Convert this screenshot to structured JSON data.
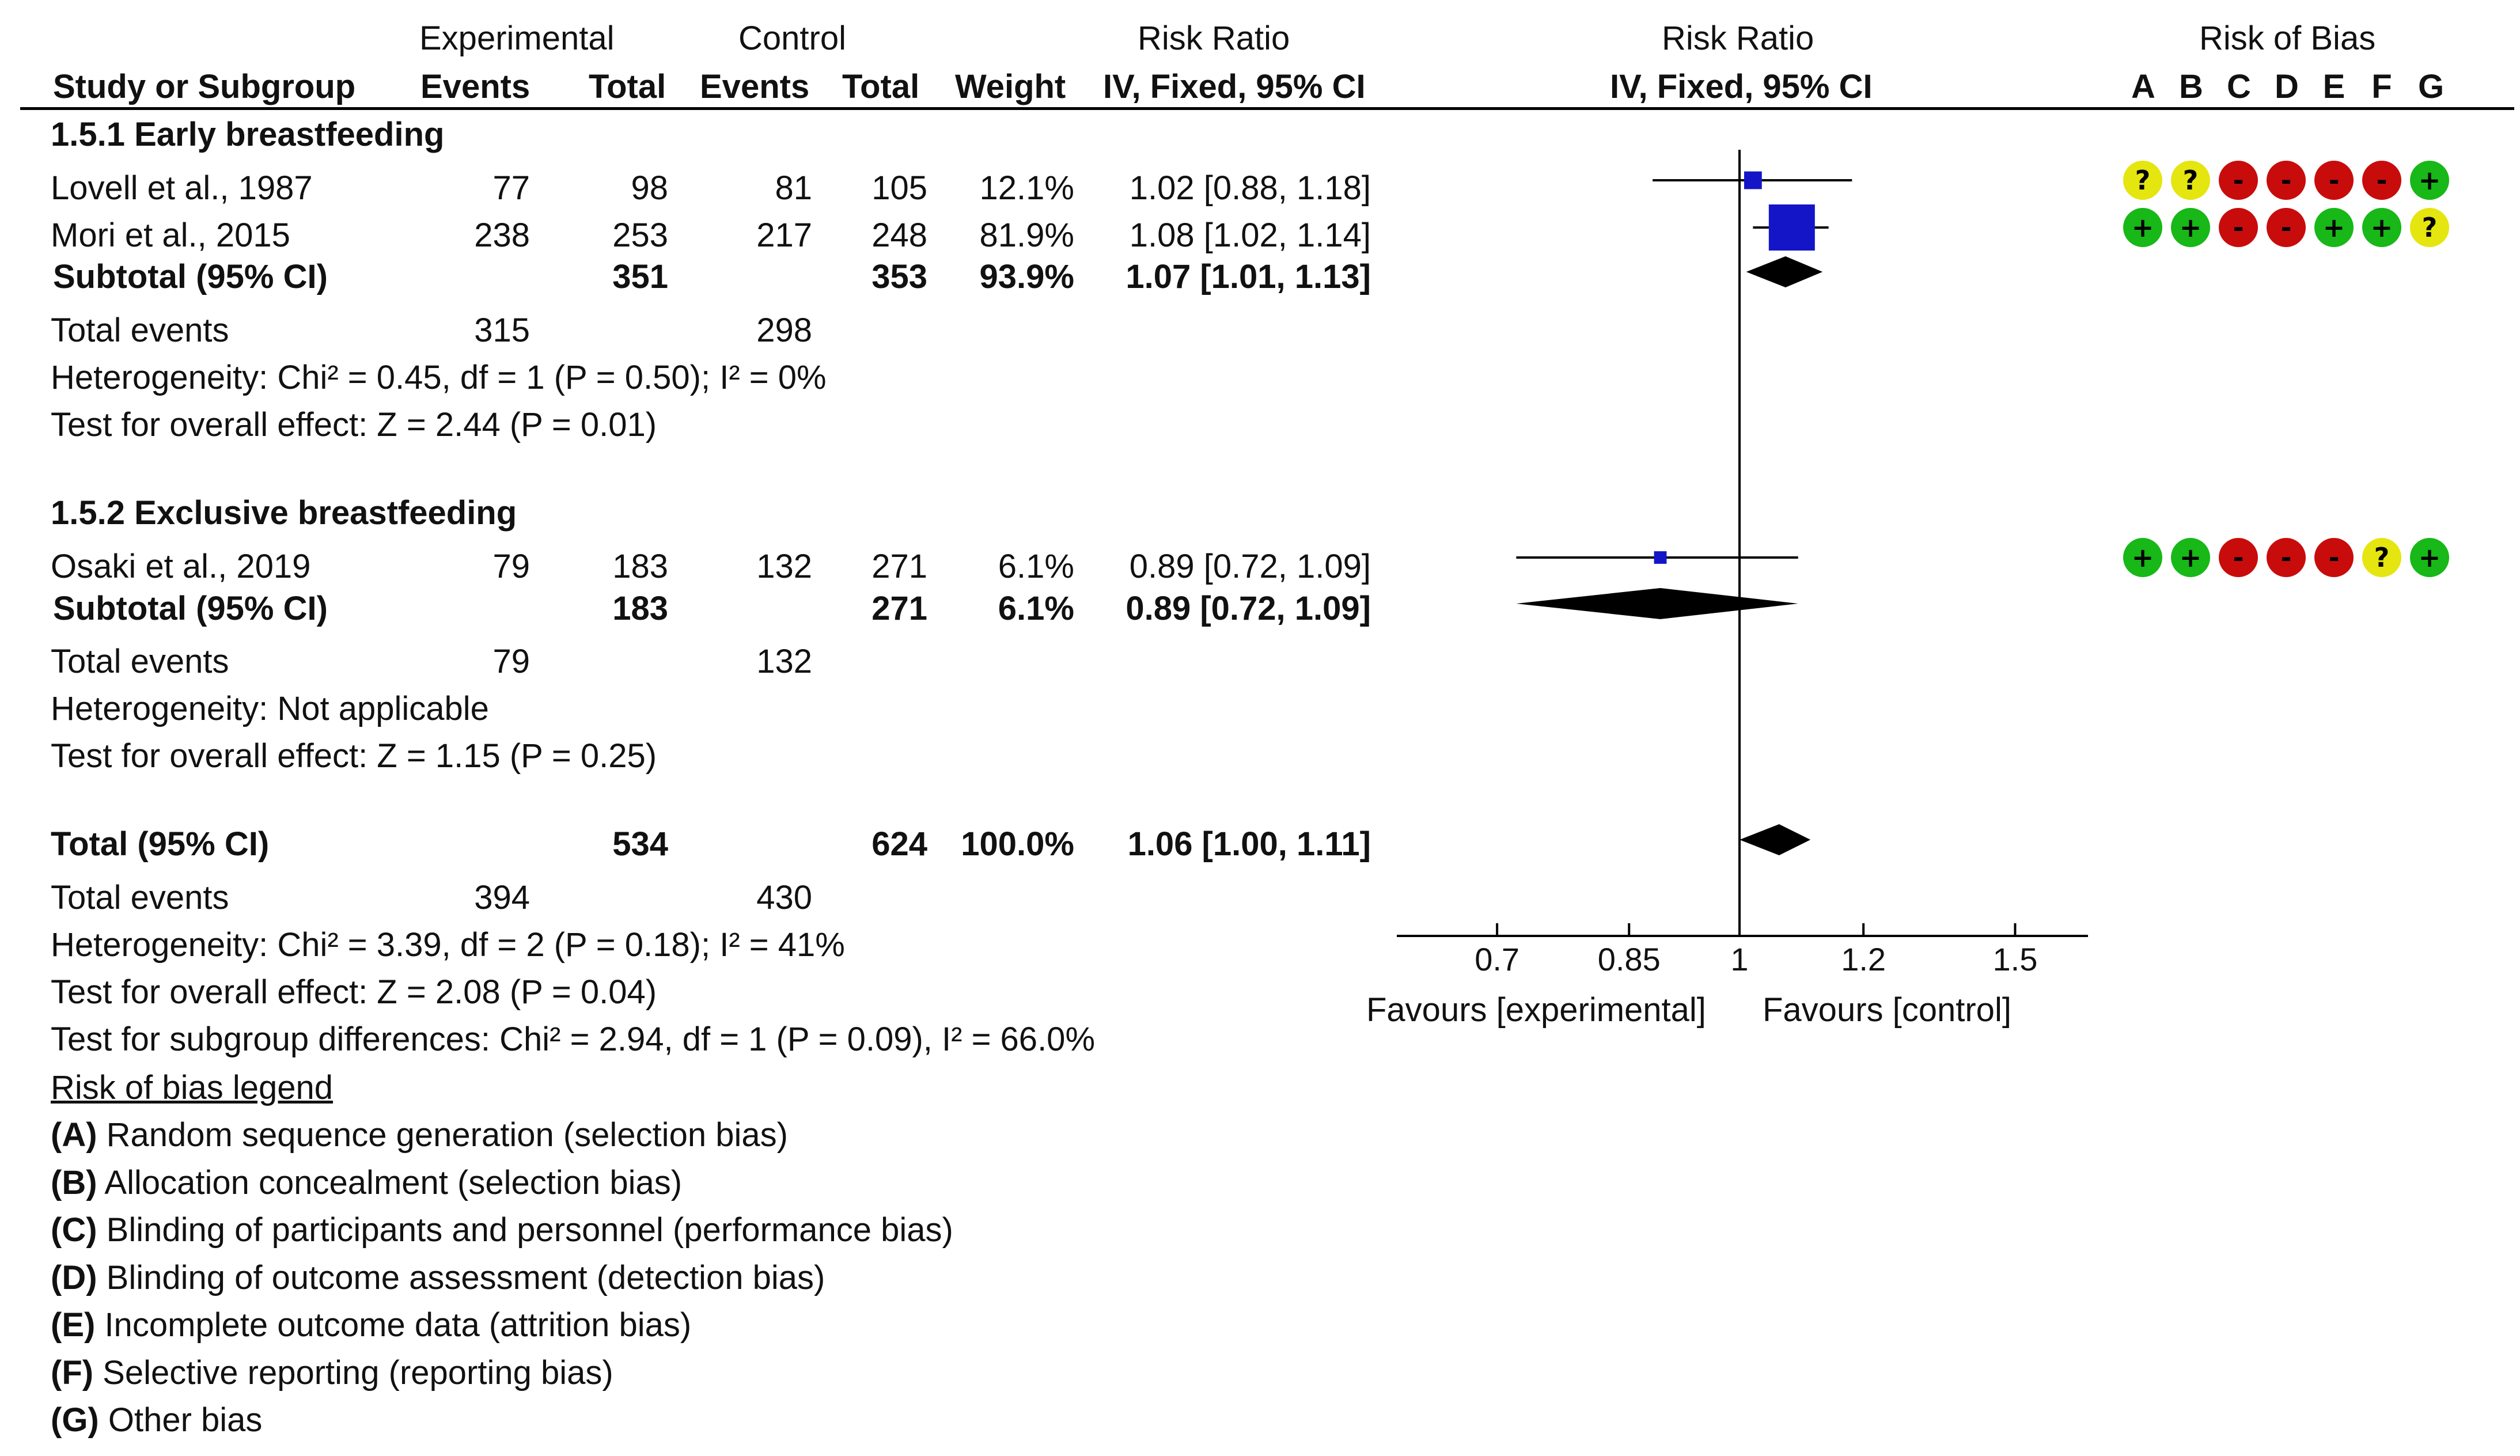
{
  "header": {
    "group_experimental": "Experimental",
    "group_control": "Control",
    "rr_label": "Risk Ratio",
    "rob_label": "Risk of Bias",
    "study_col": "Study or Subgroup",
    "events": "Events",
    "total": "Total",
    "weight": "Weight",
    "method": "IV, Fixed, 95% CI",
    "rob_letters": [
      "A",
      "B",
      "C",
      "D",
      "E",
      "F",
      "G"
    ]
  },
  "subgroups": [
    {
      "title": "1.5.1 Early breastfeeding",
      "studies": [
        {
          "name": "Lovell et al., 1987",
          "exp_events": "77",
          "exp_total": "98",
          "ctrl_events": "81",
          "ctrl_total": "105",
          "weight": "12.1%",
          "ci_text": "1.02 [0.88, 1.18]",
          "rr": 1.02,
          "lo": 0.88,
          "hi": 1.18,
          "w": 12.1,
          "rob": [
            "?",
            "?",
            "-",
            "-",
            "-",
            "-",
            "+"
          ]
        },
        {
          "name": "Mori et al., 2015",
          "exp_events": "238",
          "exp_total": "253",
          "ctrl_events": "217",
          "ctrl_total": "248",
          "weight": "81.9%",
          "ci_text": "1.08 [1.02, 1.14]",
          "rr": 1.08,
          "lo": 1.02,
          "hi": 1.14,
          "w": 81.9,
          "rob": [
            "+",
            "+",
            "-",
            "-",
            "+",
            "+",
            "?"
          ]
        }
      ],
      "subtotal": {
        "label": "Subtotal (95% CI)",
        "exp_total": "351",
        "ctrl_total": "353",
        "weight": "93.9%",
        "ci_text": "1.07 [1.01, 1.13]",
        "rr": 1.07,
        "lo": 1.01,
        "hi": 1.13
      },
      "total_events": {
        "label": "Total events",
        "exp": "315",
        "ctrl": "298"
      },
      "heterogeneity": "Heterogeneity: Chi² = 0.45, df = 1 (P = 0.50); I² = 0%",
      "overall_effect": "Test for overall effect: Z = 2.44 (P = 0.01)"
    },
    {
      "title": "1.5.2 Exclusive breastfeeding",
      "studies": [
        {
          "name": "Osaki et al., 2019",
          "exp_events": "79",
          "exp_total": "183",
          "ctrl_events": "132",
          "ctrl_total": "271",
          "weight": "6.1%",
          "ci_text": "0.89 [0.72, 1.09]",
          "rr": 0.89,
          "lo": 0.72,
          "hi": 1.09,
          "w": 6.1,
          "rob": [
            "+",
            "+",
            "-",
            "-",
            "-",
            "?",
            "+"
          ]
        }
      ],
      "subtotal": {
        "label": "Subtotal (95% CI)",
        "exp_total": "183",
        "ctrl_total": "271",
        "weight": "6.1%",
        "ci_text": "0.89 [0.72, 1.09]",
        "rr": 0.89,
        "lo": 0.72,
        "hi": 1.09
      },
      "total_events": {
        "label": "Total events",
        "exp": "79",
        "ctrl": "132"
      },
      "heterogeneity": "Heterogeneity: Not applicable",
      "overall_effect": "Test for overall effect: Z = 1.15 (P = 0.25)"
    }
  ],
  "overall": {
    "label": "Total (95% CI)",
    "exp_total": "534",
    "ctrl_total": "624",
    "weight": "100.0%",
    "ci_text": "1.06 [1.00, 1.11]",
    "rr": 1.06,
    "lo": 1.0,
    "hi": 1.11,
    "total_events": {
      "label": "Total events",
      "exp": "394",
      "ctrl": "430"
    },
    "heterogeneity": "Heterogeneity: Chi² = 3.39, df = 2 (P = 0.18); I² = 41%",
    "overall_effect": "Test for overall effect: Z = 2.08 (P = 0.04)",
    "subgroup_diff": "Test for subgroup differences: Chi² = 2.94, df = 1 (P = 0.09), I² = 66.0%"
  },
  "axis": {
    "ticks": [
      0.7,
      0.85,
      1,
      1.2,
      1.5
    ],
    "tick_labels": [
      "0.7",
      "0.85",
      "1",
      "1.2",
      "1.5"
    ],
    "scale": "log",
    "favours_left": "Favours [experimental]",
    "favours_right": "Favours [control]"
  },
  "legend": {
    "title": "Risk of bias legend",
    "items": [
      {
        "key": "(A)",
        "text": "Random sequence generation (selection bias)"
      },
      {
        "key": "(B)",
        "text": "Allocation concealment (selection bias)"
      },
      {
        "key": "(C)",
        "text": "Blinding of participants and personnel (performance bias)"
      },
      {
        "key": "(D)",
        "text": "Blinding of outcome assessment (detection bias)"
      },
      {
        "key": "(E)",
        "text": "Incomplete outcome data (attrition bias)"
      },
      {
        "key": "(F)",
        "text": "Selective reporting (reporting bias)"
      },
      {
        "key": "(G)",
        "text": "Other bias"
      }
    ]
  },
  "colors": {
    "marker": "#1515c8",
    "diamond": "#000000",
    "low_risk": "#17b817",
    "unclear_risk": "#e5e510",
    "high_risk": "#c80c0c"
  },
  "chart_data": {
    "type": "forest",
    "x_scale": "log",
    "xlim": [
      0.7,
      1.5
    ],
    "null_line": 1,
    "series": [
      {
        "name": "Lovell et al., 1987",
        "rr": 1.02,
        "ci": [
          0.88,
          1.18
        ],
        "weight": 12.1
      },
      {
        "name": "Mori et al., 2015",
        "rr": 1.08,
        "ci": [
          1.02,
          1.14
        ],
        "weight": 81.9
      },
      {
        "name": "Subtotal (95% CI)",
        "rr": 1.07,
        "ci": [
          1.01,
          1.13
        ]
      },
      {
        "name": "Osaki et al., 2019",
        "rr": 0.89,
        "ci": [
          0.72,
          1.09
        ],
        "weight": 6.1
      },
      {
        "name": "Subtotal (95% CI)",
        "rr": 0.89,
        "ci": [
          0.72,
          1.09
        ]
      },
      {
        "name": "Total (95% CI)",
        "rr": 1.06,
        "ci": [
          1.0,
          1.11
        ],
        "weight": 100.0
      }
    ]
  }
}
